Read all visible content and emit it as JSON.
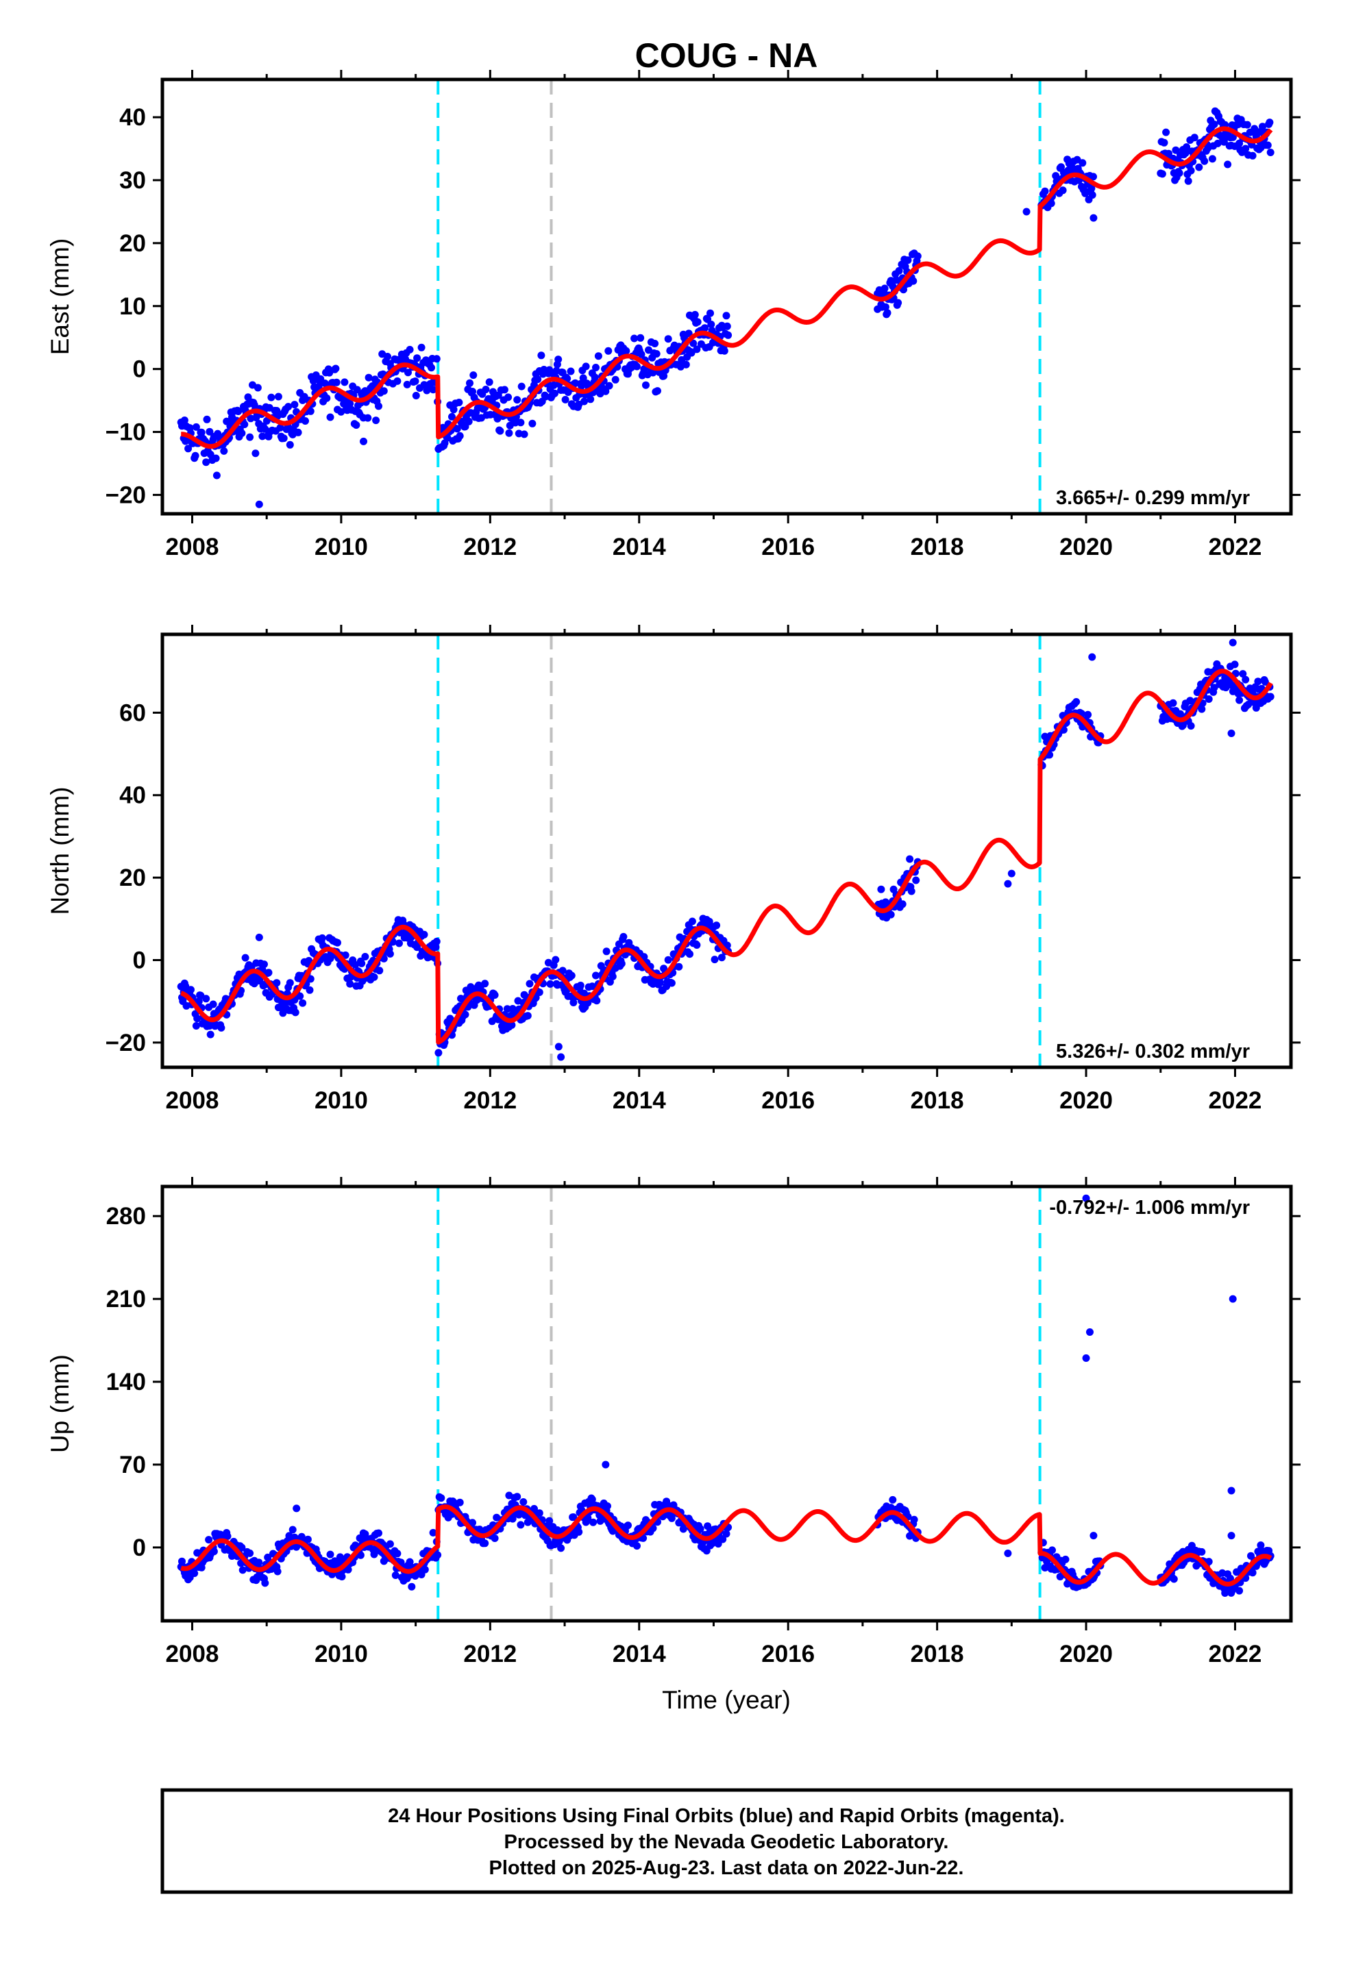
{
  "title": "COUG - NA",
  "xlabel": "Time (year)",
  "footer": {
    "line1": "24 Hour Positions Using Final Orbits (blue) and Rapid Orbits (magenta).",
    "line2": "Processed by the Nevada Geodetic Laboratory.",
    "line3": "Plotted on 2025-Aug-23. Last data on 2022-Jun-22."
  },
  "colors": {
    "data": "#0000ff",
    "model": "#ff0000",
    "equipment_change": "#00e5ff",
    "other_event": "#c0c0c0",
    "frame": "#000000"
  },
  "chart_data": [
    {
      "type": "scatter",
      "ylabel": "East (mm)",
      "rate_label": "3.665+/- 0.299 mm/yr",
      "xlim": [
        2007.6,
        2022.75
      ],
      "ylim": [
        -23,
        46
      ],
      "xticks": [
        2008,
        2010,
        2012,
        2014,
        2016,
        2018,
        2020,
        2022
      ],
      "yticks": [
        -20,
        -10,
        0,
        10,
        20,
        30,
        40
      ],
      "ytick_labels": [
        "−20",
        "−10",
        "0",
        "10",
        "20",
        "30",
        "40"
      ],
      "event_lines": [
        {
          "x": 2011.3,
          "kind": "equipment_change"
        },
        {
          "x": 2012.82,
          "kind": "other_event"
        },
        {
          "x": 2019.38,
          "kind": "equipment_change"
        }
      ],
      "model": {
        "ref_year": 2008.0,
        "offset0": -11.5,
        "rate": 3.665,
        "amp": 1.8,
        "phase": 0.55,
        "steps": [
          {
            "x": 2011.3,
            "dy": -9.6
          },
          {
            "x": 2019.38,
            "dy": 6.8
          }
        ]
      },
      "data_segments": [
        {
          "from": 2007.85,
          "to": 2015.2,
          "every": 0.012,
          "scatter": 2.6
        },
        {
          "from": 2017.2,
          "to": 2017.75,
          "every": 0.012,
          "scatter": 2.4
        },
        {
          "from": 2019.4,
          "to": 2020.1,
          "every": 0.012,
          "scatter": 2.2
        },
        {
          "from": 2021.0,
          "to": 2022.48,
          "every": 0.012,
          "scatter": 2.4
        }
      ],
      "outliers": [
        [
          2008.9,
          -21.5
        ],
        [
          2008.85,
          -13.4
        ],
        [
          2010.3,
          -11.5
        ],
        [
          2017.2,
          9.5
        ],
        [
          2019.2,
          25.0
        ],
        [
          2020.1,
          24.0
        ],
        [
          2021.9,
          32.5
        ]
      ]
    },
    {
      "type": "scatter",
      "ylabel": "North (mm)",
      "rate_label": "5.326+/- 0.302 mm/yr",
      "xlim": [
        2007.6,
        2022.75
      ],
      "ylim": [
        -26,
        79
      ],
      "xticks": [
        2008,
        2010,
        2012,
        2014,
        2016,
        2018,
        2020,
        2022
      ],
      "yticks": [
        -20,
        0,
        20,
        40,
        60
      ],
      "ytick_labels": [
        "−20",
        "0",
        "20",
        "40",
        "60"
      ],
      "event_lines": [
        {
          "x": 2011.3,
          "kind": "equipment_change"
        },
        {
          "x": 2012.82,
          "kind": "other_event"
        },
        {
          "x": 2019.38,
          "kind": "equipment_change"
        }
      ],
      "model": {
        "ref_year": 2008.0,
        "offset0": -11.5,
        "rate": 5.326,
        "amp": 4.5,
        "phase": 0.55,
        "steps": [
          {
            "x": 2011.3,
            "dy": -21.5
          },
          {
            "x": 2019.38,
            "dy": 25.0
          }
        ]
      },
      "data_segments": [
        {
          "from": 2007.85,
          "to": 2015.2,
          "every": 0.012,
          "scatter": 2.8
        },
        {
          "from": 2017.2,
          "to": 2017.75,
          "every": 0.012,
          "scatter": 2.5
        },
        {
          "from": 2019.4,
          "to": 2020.2,
          "every": 0.012,
          "scatter": 2.3
        },
        {
          "from": 2021.0,
          "to": 2022.48,
          "every": 0.012,
          "scatter": 2.6
        }
      ],
      "outliers": [
        [
          2008.9,
          5.5
        ],
        [
          2012.92,
          -21.0
        ],
        [
          2012.95,
          -23.5
        ],
        [
          2018.95,
          18.5
        ],
        [
          2019.0,
          21.0
        ],
        [
          2020.08,
          73.5
        ],
        [
          2021.95,
          55.0
        ],
        [
          2021.97,
          77.0
        ]
      ]
    },
    {
      "type": "scatter",
      "ylabel": "Up (mm)",
      "rate_label": "-0.792+/- 1.006 mm/yr",
      "xlim": [
        2007.6,
        2022.75
      ],
      "ylim": [
        -62,
        305
      ],
      "xticks": [
        2008,
        2010,
        2012,
        2014,
        2016,
        2018,
        2020,
        2022
      ],
      "yticks": [
        0,
        70,
        140,
        210,
        280
      ],
      "ytick_labels": [
        "0",
        "70",
        "140",
        "210",
        "280"
      ],
      "event_lines": [
        {
          "x": 2011.3,
          "kind": "equipment_change"
        },
        {
          "x": 2012.82,
          "kind": "other_event"
        },
        {
          "x": 2019.38,
          "kind": "equipment_change"
        }
      ],
      "model": {
        "ref_year": 2008.0,
        "offset0": -6.0,
        "rate": -0.792,
        "amp": 12.0,
        "phase": 0.15,
        "steps": [
          {
            "x": 2011.3,
            "dy": 31.0
          },
          {
            "x": 2019.38,
            "dy": -33.0
          }
        ]
      },
      "data_segments": [
        {
          "from": 2007.85,
          "to": 2015.2,
          "every": 0.012,
          "scatter": 7.5
        },
        {
          "from": 2017.2,
          "to": 2017.75,
          "every": 0.012,
          "scatter": 8.0
        },
        {
          "from": 2019.4,
          "to": 2020.2,
          "every": 0.012,
          "scatter": 6.5
        },
        {
          "from": 2021.0,
          "to": 2022.48,
          "every": 0.012,
          "scatter": 7.0
        }
      ],
      "outliers": [
        [
          2009.4,
          33.0
        ],
        [
          2013.55,
          70.0
        ],
        [
          2018.95,
          -5.0
        ],
        [
          2020.0,
          160.0
        ],
        [
          2020.05,
          182.0
        ],
        [
          2020.0,
          295.0
        ],
        [
          2020.1,
          10.0
        ],
        [
          2021.97,
          210.0
        ],
        [
          2021.95,
          48.0
        ],
        [
          2021.95,
          10.0
        ]
      ]
    }
  ]
}
